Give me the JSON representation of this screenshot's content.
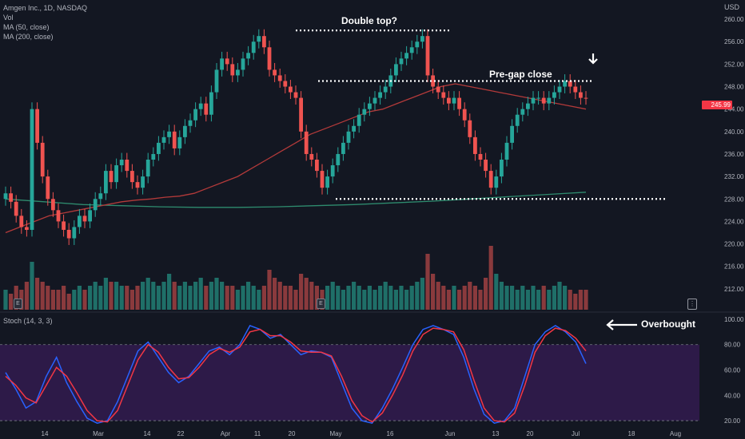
{
  "legend": {
    "symbol": "Amgen Inc., 1D, NASDAQ",
    "vol": "Vol",
    "ma50": "MA (50, close)",
    "ma200": "MA (200, close)"
  },
  "stoch_label": "Stoch (14, 3, 3)",
  "currency": "USD",
  "last_price_label": "245.99",
  "annotations": {
    "double_top": "Double top?",
    "pre_gap": "Pre-gap close",
    "overbought": "Overbought"
  },
  "event_marker": "E",
  "colors": {
    "background": "#131722",
    "up": "#26a69a",
    "down": "#ef5350",
    "ma50": "#b33a3a",
    "ma200": "#2e8b6e",
    "stoch_k": "#2962ff",
    "stoch_d": "#f23645",
    "stoch_band": "#311b4d"
  },
  "chart_data": [
    {
      "type": "candlestick",
      "title": "Amgen Inc., 1D, NASDAQ",
      "ylabel": "USD",
      "ylim": [
        208,
        262
      ],
      "y_ticks": [
        "260.00",
        "256.00",
        "252.00",
        "248.00",
        "244.00",
        "240.00",
        "236.00",
        "232.00",
        "228.00",
        "224.00",
        "220.00",
        "216.00",
        "212.00"
      ],
      "x_ticks": [
        "14",
        "Mar",
        "14",
        "22",
        "Apr",
        "11",
        "20",
        "May",
        "16",
        "Jun",
        "13",
        "20",
        "Jul",
        "18",
        "Aug"
      ],
      "close": [
        229,
        227.5,
        225,
        223,
        222.5,
        244,
        238,
        232,
        228,
        226,
        224,
        222.5,
        221,
        223,
        225,
        224,
        226,
        228,
        229,
        233,
        231,
        234,
        235,
        233,
        231,
        230,
        232,
        235,
        236,
        238,
        239,
        240,
        237,
        239,
        241,
        242,
        244,
        245,
        243,
        247,
        251,
        253,
        252,
        250,
        251,
        253,
        254,
        256,
        257,
        255,
        251,
        250,
        249,
        248,
        247,
        246,
        240,
        236,
        235,
        233,
        230,
        232,
        234,
        236,
        238,
        240,
        241,
        243,
        244,
        245,
        246,
        247,
        248,
        250,
        252,
        253,
        254,
        255,
        256,
        257,
        250,
        248,
        247,
        246,
        245,
        246,
        244,
        242,
        239,
        236,
        235,
        233,
        230,
        232,
        235,
        238,
        241,
        243,
        244,
        245,
        246,
        246,
        245,
        246,
        247,
        248,
        249,
        248,
        247,
        246,
        245.99
      ],
      "volume": [
        5,
        4,
        6,
        5,
        7,
        12,
        8,
        7,
        6,
        5,
        5,
        6,
        4,
        5,
        6,
        5,
        6,
        7,
        6,
        8,
        7,
        7,
        6,
        6,
        5,
        6,
        7,
        8,
        7,
        6,
        7,
        9,
        7,
        6,
        7,
        6,
        7,
        8,
        6,
        7,
        8,
        7,
        6,
        6,
        5,
        6,
        7,
        6,
        5,
        6,
        10,
        8,
        7,
        6,
        6,
        5,
        9,
        8,
        7,
        6,
        5,
        6,
        7,
        6,
        5,
        6,
        7,
        6,
        5,
        6,
        5,
        6,
        7,
        6,
        5,
        6,
        5,
        6,
        7,
        8,
        14,
        9,
        7,
        6,
        5,
        6,
        5,
        6,
        7,
        6,
        5,
        8,
        16,
        9,
        7,
        6,
        6,
        5,
        6,
        5,
        6,
        5,
        6,
        5,
        6,
        7,
        6,
        5,
        4,
        5,
        5
      ],
      "ma50": [
        222,
        223,
        224,
        225,
        225.5,
        226,
        226.5,
        227,
        227.5,
        227.8,
        228,
        228.3,
        228.5,
        229,
        230,
        231,
        232,
        233.5,
        235,
        236.5,
        238,
        239.5,
        240.5,
        241.5,
        242.5,
        243.5,
        244,
        245,
        246,
        247,
        248,
        248.5,
        248,
        247.5,
        247,
        246.5,
        246,
        245.5,
        245,
        244.5,
        244
      ],
      "ma200": [
        228,
        227.5,
        227,
        226.8,
        226.6,
        226.5,
        226.5,
        226.6,
        226.8,
        227,
        227.3,
        227.6,
        228,
        228.4,
        228.8,
        229.2
      ]
    },
    {
      "type": "line",
      "title": "Stoch (14, 3, 3)",
      "ylim": [
        15,
        105
      ],
      "y_ticks": [
        "100.00",
        "80.00",
        "60.00",
        "40.00",
        "20.00"
      ],
      "bands": [
        20,
        80
      ],
      "series": [
        {
          "name": "K",
          "values": [
            58,
            45,
            30,
            35,
            55,
            70,
            50,
            35,
            22,
            18,
            20,
            35,
            55,
            75,
            82,
            70,
            58,
            50,
            55,
            65,
            75,
            78,
            72,
            80,
            95,
            92,
            85,
            88,
            80,
            72,
            75,
            74,
            70,
            50,
            30,
            20,
            18,
            30,
            45,
            62,
            80,
            92,
            95,
            92,
            88,
            70,
            45,
            25,
            18,
            20,
            30,
            55,
            80,
            90,
            95,
            90,
            82,
            65
          ]
        },
        {
          "name": "D",
          "values": [
            55,
            48,
            38,
            34,
            48,
            62,
            55,
            42,
            28,
            20,
            19,
            28,
            48,
            68,
            80,
            74,
            62,
            53,
            54,
            62,
            72,
            77,
            74,
            78,
            90,
            92,
            87,
            87,
            82,
            75,
            74,
            74,
            71,
            55,
            36,
            24,
            19,
            26,
            40,
            56,
            75,
            88,
            93,
            92,
            90,
            76,
            52,
            30,
            20,
            19,
            26,
            48,
            74,
            87,
            93,
            91,
            85,
            75
          ]
        }
      ]
    }
  ]
}
